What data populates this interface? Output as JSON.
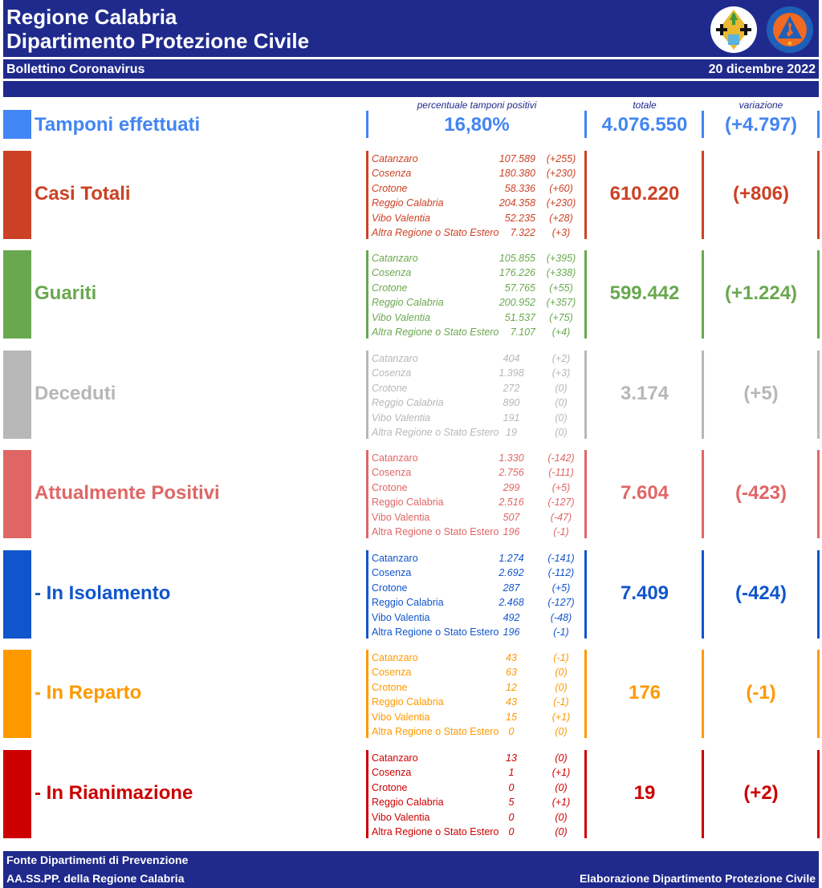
{
  "header": {
    "title_line1": "Regione Calabria",
    "title_line2": "Dipartimento Protezione Civile",
    "subtitle": "Bollettino Coronavirus",
    "date": "20 dicembre 2022",
    "logos": [
      "regione-calabria-emblem",
      "protezione-civile-calabria-logo"
    ],
    "logo2_text": "PROTEZIONE CIVILE",
    "logo2_subtext": "Regione Calabria",
    "color": "#1f2a8c"
  },
  "columns": {
    "percent_label": "percentuale tamponi positivi",
    "total_label": "totale",
    "variation_label": "variazione"
  },
  "tamponi": {
    "label": "Tamponi effettuati",
    "percent": "16,80%",
    "total": "4.076.550",
    "variation": "(+4.797)",
    "color": "#4285f4"
  },
  "sections": [
    {
      "label": "Casi Totali",
      "total": "610.220",
      "variation": "(+806)",
      "color": "#cc4125",
      "italic_names": true,
      "provinces": [
        {
          "name": "Catanzaro",
          "value": "107.589",
          "delta": "(+255)"
        },
        {
          "name": "Cosenza",
          "value": "180.380",
          "delta": "(+230)"
        },
        {
          "name": "Crotone",
          "value": "58.336",
          "delta": "(+60)"
        },
        {
          "name": "Reggio Calabria",
          "value": "204.358",
          "delta": "(+230)"
        },
        {
          "name": "Vibo Valentia",
          "value": "52.235",
          "delta": "(+28)"
        },
        {
          "name": "Altra Regione o Stato Estero",
          "value": "7.322",
          "delta": "(+3)"
        }
      ]
    },
    {
      "label": "Guariti",
      "total": "599.442",
      "variation": "(+1.224)",
      "color": "#6aa84f",
      "italic_names": true,
      "provinces": [
        {
          "name": "Catanzaro",
          "value": "105.855",
          "delta": "(+395)"
        },
        {
          "name": "Cosenza",
          "value": "176.226",
          "delta": "(+338)"
        },
        {
          "name": "Crotone",
          "value": "57.765",
          "delta": "(+55)"
        },
        {
          "name": "Reggio Calabria",
          "value": "200.952",
          "delta": "(+357)"
        },
        {
          "name": "Vibo Valentia",
          "value": "51.537",
          "delta": "(+75)"
        },
        {
          "name": "Altra Regione o Stato Estero",
          "value": "7.107",
          "delta": "(+4)"
        }
      ]
    },
    {
      "label": "Deceduti",
      "total": "3.174",
      "variation": "(+5)",
      "color": "#b7b7b7",
      "italic_names": true,
      "provinces": [
        {
          "name": "Catanzaro",
          "value": "404",
          "delta": "(+2)"
        },
        {
          "name": "Cosenza",
          "value": "1.398",
          "delta": "(+3)"
        },
        {
          "name": "Crotone",
          "value": "272",
          "delta": "(0)"
        },
        {
          "name": "Reggio Calabria",
          "value": "890",
          "delta": "(0)"
        },
        {
          "name": "Vibo Valentia",
          "value": "191",
          "delta": "(0)"
        },
        {
          "name": "Altra Regione o Stato Estero",
          "value": "19",
          "delta": "(0)"
        }
      ]
    },
    {
      "label": "Attualmente Positivi",
      "total": "7.604",
      "variation": "(-423)",
      "color": "#e06666",
      "italic_names": false,
      "provinces": [
        {
          "name": "Catanzaro",
          "value": "1.330",
          "delta": "(-142)"
        },
        {
          "name": "Cosenza",
          "value": "2.756",
          "delta": "(-111)"
        },
        {
          "name": "Crotone",
          "value": "299",
          "delta": "(+5)"
        },
        {
          "name": "Reggio Calabria",
          "value": "2.516",
          "delta": "(-127)"
        },
        {
          "name": "Vibo Valentia",
          "value": "507",
          "delta": "(-47)"
        },
        {
          "name": "Altra Regione o Stato Estero",
          "value": "196",
          "delta": "(-1)"
        }
      ]
    },
    {
      "label": " - In Isolamento",
      "total": "7.409",
      "variation": "(-424)",
      "color": "#1155cc",
      "italic_names": false,
      "provinces": [
        {
          "name": "Catanzaro",
          "value": "1.274",
          "delta": "(-141)"
        },
        {
          "name": "Cosenza",
          "value": "2.692",
          "delta": "(-112)"
        },
        {
          "name": "Crotone",
          "value": "287",
          "delta": "(+5)"
        },
        {
          "name": "Reggio Calabria",
          "value": "2.468",
          "delta": "(-127)"
        },
        {
          "name": "Vibo Valentia",
          "value": "492",
          "delta": "(-48)"
        },
        {
          "name": "Altra Regione o Stato Estero",
          "value": "196",
          "delta": "(-1)"
        }
      ]
    },
    {
      "label": " - In Reparto",
      "total": "176",
      "variation": "(-1)",
      "color": "#ff9900",
      "italic_names": false,
      "provinces": [
        {
          "name": "Catanzaro",
          "value": "43",
          "delta": "(-1)"
        },
        {
          "name": "Cosenza",
          "value": "63",
          "delta": "(0)"
        },
        {
          "name": "Crotone",
          "value": "12",
          "delta": "(0)"
        },
        {
          "name": "Reggio Calabria",
          "value": "43",
          "delta": "(-1)"
        },
        {
          "name": "Vibo Valentia",
          "value": "15",
          "delta": "(+1)"
        },
        {
          "name": "Altra Regione o Stato Estero",
          "value": "0",
          "delta": "(0)"
        }
      ]
    },
    {
      "label": " - In Rianimazione",
      "total": "19",
      "variation": "(+2)",
      "color": "#cc0000",
      "italic_names": false,
      "provinces": [
        {
          "name": "Catanzaro",
          "value": "13",
          "delta": "(0)"
        },
        {
          "name": "Cosenza",
          "value": "1",
          "delta": "(+1)"
        },
        {
          "name": "Crotone",
          "value": "0",
          "delta": "(0)"
        },
        {
          "name": "Reggio Calabria",
          "value": "5",
          "delta": "(+1)"
        },
        {
          "name": "Vibo Valentia",
          "value": "0",
          "delta": "(0)"
        },
        {
          "name": "Altra Regione o Stato Estero",
          "value": "0",
          "delta": "(0)"
        }
      ]
    }
  ],
  "footer": {
    "line1": "Fonte Dipartimenti di Prevenzione",
    "line2": "AA.SS.PP.  della Regione Calabria",
    "right": "Elaborazione Dipartimento Protezione Civile"
  }
}
